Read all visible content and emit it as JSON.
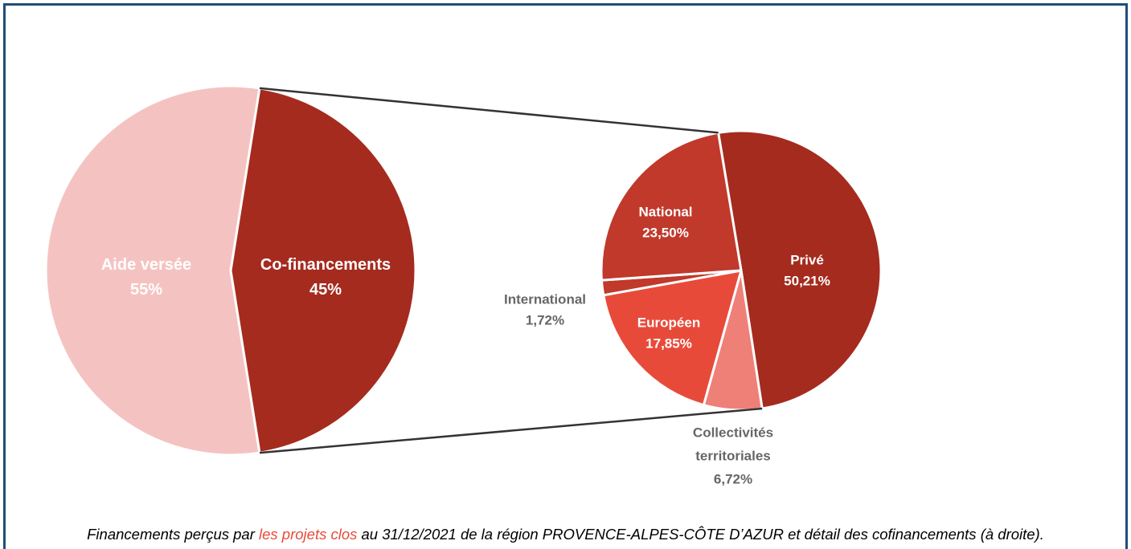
{
  "chart_data": [
    {
      "type": "pie",
      "categories": [
        "Aide versée",
        "Co-financements"
      ],
      "values": [
        55,
        45
      ],
      "value_labels": [
        "55%",
        "45%"
      ],
      "colors": [
        "#f4c3c1",
        "#a52b1f"
      ]
    },
    {
      "type": "pie",
      "categories": [
        "Privé",
        "Collectivités territoriales",
        "Européen",
        "International",
        "National"
      ],
      "values": [
        50.21,
        6.72,
        17.85,
        1.72,
        23.5
      ],
      "value_labels": [
        "50,21%",
        "6,72%",
        "17,85%",
        "1,72%",
        "23,50%"
      ],
      "colors": [
        "#a52b1f",
        "#ee8078",
        "#e84a3a",
        "#c0392b",
        "#c0392b"
      ]
    }
  ],
  "caption": {
    "before": "Financements perçus par ",
    "highlight": "les projets clos",
    "after": " au 31/12/2021 de la région PROVENCE-ALPES-CÔTE D’AZUR et détail des cofinancements (à droite)."
  }
}
